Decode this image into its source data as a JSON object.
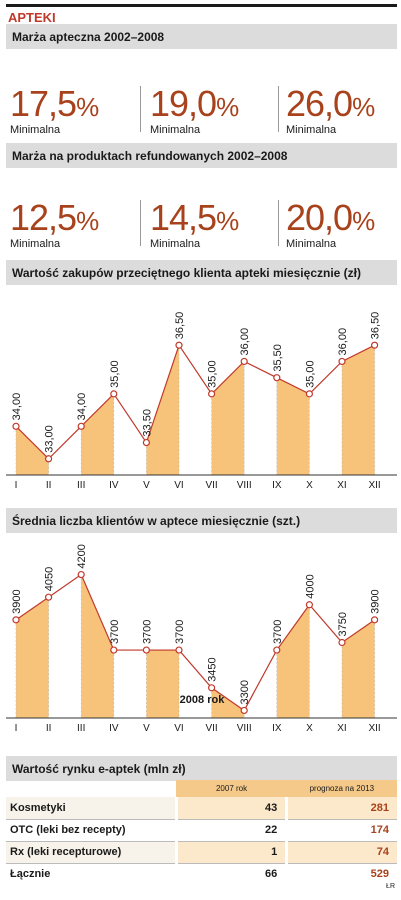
{
  "title": "APTEKI",
  "sec1": {
    "heading": "Marża apteczna 2002–2008",
    "stats": [
      {
        "num": "17,5",
        "pct": "%",
        "label": "Minimalna"
      },
      {
        "num": "19,0",
        "pct": "%",
        "label": "Minimalna"
      },
      {
        "num": "26,0",
        "pct": "%",
        "label": "Minimalna"
      }
    ]
  },
  "sec2": {
    "heading": "Marża na produktach refundowanych 2002–2008",
    "stats": [
      {
        "num": "12,5",
        "pct": "%",
        "label": "Minimalna"
      },
      {
        "num": "14,5",
        "pct": "%",
        "label": "Minimalna"
      },
      {
        "num": "20,0",
        "pct": "%",
        "label": "Minimalna"
      }
    ]
  },
  "chart_data": [
    {
      "type": "line",
      "title": "Wartość zakupów przeciętnego klienta apteki miesięcznie (zł)",
      "categories": [
        "I",
        "II",
        "III",
        "IV",
        "V",
        "VI",
        "VII",
        "VIII",
        "IX",
        "X",
        "XI",
        "XII"
      ],
      "values": [
        34.0,
        33.0,
        34.0,
        35.0,
        33.5,
        36.5,
        35.0,
        36.0,
        35.5,
        35.0,
        36.0,
        36.5
      ],
      "labels": [
        "34,00",
        "33,00",
        "34,00",
        "35,00",
        "33,50",
        "36,50",
        "35,00",
        "36,00",
        "35,50",
        "35,00",
        "36,00",
        "36,50"
      ],
      "ylim": [
        32.5,
        37.0
      ],
      "area_fill": "#f7c27a"
    },
    {
      "type": "line",
      "title": "Średnia liczba klientów w aptece miesięcznie (szt.)",
      "annotation": "2008 rok",
      "categories": [
        "I",
        "II",
        "III",
        "IV",
        "V",
        "VI",
        "VII",
        "VIII",
        "IX",
        "X",
        "XI",
        "XII"
      ],
      "values": [
        3900,
        4050,
        4200,
        3700,
        3700,
        3700,
        3450,
        3300,
        3700,
        4000,
        3750,
        3900
      ],
      "labels": [
        "3900",
        "4050",
        "4200",
        "3700",
        "3700",
        "3700",
        "3450",
        "3300",
        "3700",
        "4000",
        "3750",
        "3900"
      ],
      "ylim": [
        3250,
        4250
      ],
      "area_fill": "#f7c27a"
    }
  ],
  "table": {
    "heading": "Wartość rynku e-aptek (mln zł)",
    "col1": "2007 rok",
    "col2": "prognoza na 2013",
    "rows": [
      {
        "name": "Kosmetyki",
        "v1": "43",
        "v2": "281"
      },
      {
        "name": "OTC (leki bez recepty)",
        "v1": "22",
        "v2": "174"
      },
      {
        "name": "Rx (leki recepturowe)",
        "v1": "1",
        "v2": "74"
      },
      {
        "name": "Łącznie",
        "v1": "66",
        "v2": "529"
      }
    ]
  },
  "source": "ŁR"
}
